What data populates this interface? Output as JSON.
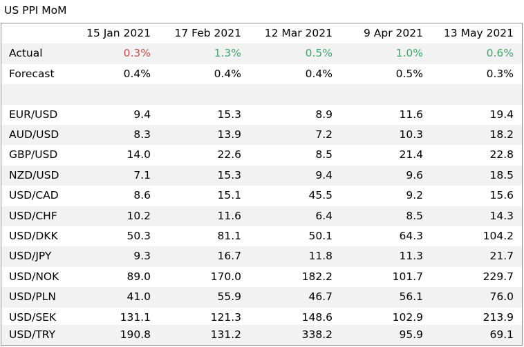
{
  "title": "US PPI MoM",
  "columns": [
    "15 Jan 2021",
    "17 Feb 2021",
    "12 Mar 2021",
    "9 Apr 2021",
    "13 May 2021"
  ],
  "actual": {
    "label": "Actual",
    "values": [
      "0.3%",
      "1.3%",
      "0.5%",
      "1.0%",
      "0.6%"
    ],
    "colors": [
      "#c0504d",
      "#3aa86b",
      "#3aa86b",
      "#3aa86b",
      "#3aa86b"
    ]
  },
  "forecast": {
    "label": "Forecast",
    "values": [
      "0.4%",
      "0.4%",
      "0.4%",
      "0.5%",
      "0.3%"
    ]
  },
  "pairs": [
    {
      "label": "EUR/USD",
      "values": [
        "9.4",
        "15.3",
        "8.9",
        "11.6",
        "19.4"
      ]
    },
    {
      "label": "AUD/USD",
      "values": [
        "8.3",
        "13.9",
        "7.2",
        "10.3",
        "18.2"
      ]
    },
    {
      "label": "GBP/USD",
      "values": [
        "14.0",
        "22.6",
        "8.5",
        "21.4",
        "22.8"
      ]
    },
    {
      "label": "NZD/USD",
      "values": [
        "7.1",
        "15.3",
        "9.4",
        "9.6",
        "18.5"
      ]
    },
    {
      "label": "USD/CAD",
      "values": [
        "8.6",
        "15.1",
        "45.5",
        "9.2",
        "15.6"
      ]
    },
    {
      "label": "USD/CHF",
      "values": [
        "10.2",
        "11.6",
        "6.4",
        "8.5",
        "14.3"
      ]
    },
    {
      "label": "USD/DKK",
      "values": [
        "50.3",
        "81.1",
        "50.1",
        "64.3",
        "104.2"
      ]
    },
    {
      "label": "USD/JPY",
      "values": [
        "9.3",
        "16.7",
        "11.8",
        "11.3",
        "21.7"
      ]
    },
    {
      "label": "USD/NOK",
      "values": [
        "89.0",
        "170.0",
        "182.2",
        "101.7",
        "229.7"
      ]
    },
    {
      "label": "USD/PLN",
      "values": [
        "41.0",
        "55.9",
        "46.7",
        "56.1",
        "76.0"
      ]
    },
    {
      "label": "USD/SEK",
      "values": [
        "131.1",
        "121.3",
        "148.6",
        "102.9",
        "213.9"
      ]
    },
    {
      "label": "USD/TRY",
      "values": [
        "190.8",
        "131.2",
        "338.2",
        "95.9",
        "69.1"
      ]
    }
  ]
}
